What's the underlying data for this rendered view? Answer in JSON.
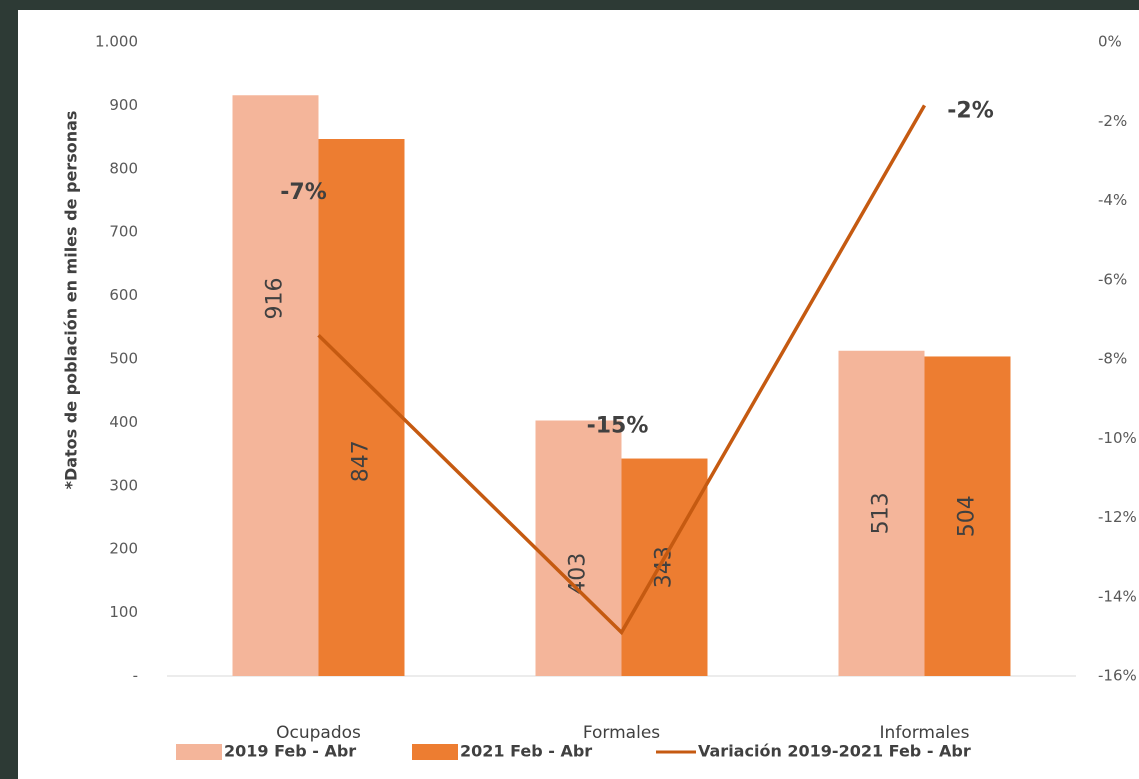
{
  "chart_data": {
    "type": "bar",
    "y_label": "*Datos de población en miles de personas",
    "categories": [
      "Ocupados",
      "Formales",
      "Informales"
    ],
    "series": [
      {
        "name": "2019 Feb - Abr",
        "color": "#f4b59a",
        "values": [
          916,
          403,
          513
        ]
      },
      {
        "name": "2021 Feb - Abr",
        "color": "#ed7d31",
        "values": [
          847,
          343,
          504
        ]
      },
      {
        "name": "Variación 2019-2021 Feb - Abr",
        "type": "line",
        "axis": "y2",
        "color": "#c55a11",
        "values": [
          -7.4,
          -14.9,
          -1.6
        ],
        "value_labels": [
          "-7%",
          "-15%",
          "-2%"
        ]
      }
    ],
    "ylim": [
      0,
      1000
    ],
    "yticks": [
      {
        "value": 0,
        "label": "-"
      },
      100,
      200,
      300,
      400,
      500,
      600,
      700,
      800,
      900,
      {
        "value": 1000,
        "label": "1.000"
      }
    ],
    "y2lim": [
      -16,
      0
    ],
    "y2ticks": [
      {
        "value": 0,
        "label": "0%"
      },
      {
        "value": -2,
        "label": "-2%"
      },
      {
        "value": -4,
        "label": "-4%"
      },
      {
        "value": -6,
        "label": "-6%"
      },
      {
        "value": -8,
        "label": "-8%"
      },
      {
        "value": -10,
        "label": "-10%"
      },
      {
        "value": -12,
        "label": "-12%"
      },
      {
        "value": -14,
        "label": "-14%"
      },
      {
        "value": -16,
        "label": "-16%"
      }
    ],
    "grid": false,
    "legend": "bottom"
  }
}
